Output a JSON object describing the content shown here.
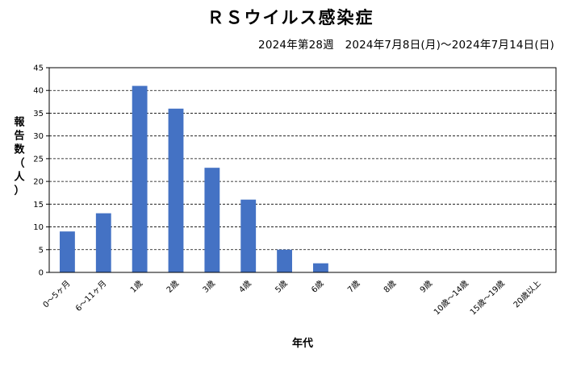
{
  "chart_data": {
    "type": "bar",
    "title": "ＲＳウイルス感染症",
    "subtitle": "2024年第28週　2024年7月8日(月)～2024年7月14日(日)",
    "xlabel": "年代",
    "ylabel": "報告数（人）",
    "ylim": [
      0,
      45
    ],
    "yticks": [
      0,
      5,
      10,
      15,
      20,
      25,
      30,
      35,
      40,
      45
    ],
    "grid": true,
    "bar_color": "#4472C4",
    "categories": [
      "0～5ヶ月",
      "6～11ヶ月",
      "1歳",
      "2歳",
      "3歳",
      "4歳",
      "5歳",
      "6歳",
      "7歳",
      "8歳",
      "9歳",
      "10歳～14歳",
      "15歳～19歳",
      "20歳以上"
    ],
    "values": [
      9,
      13,
      41,
      36,
      23,
      16,
      5,
      2,
      0,
      0,
      0,
      0,
      0,
      0
    ]
  }
}
